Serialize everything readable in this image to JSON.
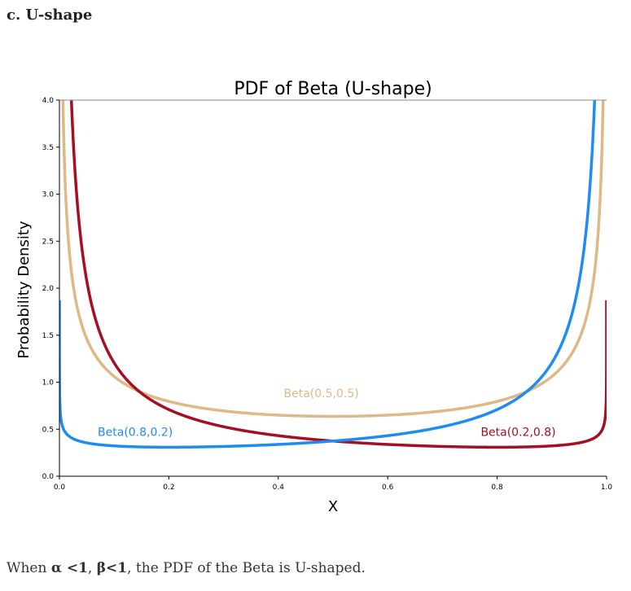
{
  "section_heading": "c. U-shape",
  "caption": {
    "prefix": "When ",
    "alpha": "α <1",
    "sep": ", ",
    "beta": "β<1",
    "suffix": ", the PDF of the Beta is U-shaped."
  },
  "chart_data": {
    "type": "line",
    "title": "PDF of Beta (U-shape)",
    "xlabel": "X",
    "ylabel": "Probability Density",
    "xlim": [
      0,
      1
    ],
    "ylim": [
      0,
      4
    ],
    "xticks": [
      "0.0",
      "0.2",
      "0.4",
      "0.6",
      "0.8",
      "1.0"
    ],
    "yticks": [
      "0.0",
      "0.5",
      "1.0",
      "1.5",
      "2.0",
      "2.5",
      "3.0",
      "3.5",
      "4.0"
    ],
    "grid": false,
    "series": [
      {
        "name": "Beta(0.5,0.5)",
        "alpha": 0.5,
        "beta": 0.5,
        "color": "#deb887"
      },
      {
        "name": "Beta(0.2,0.8)",
        "alpha": 0.2,
        "beta": 0.8,
        "color": "#a50f24"
      },
      {
        "name": "Beta(0.8,0.2)",
        "alpha": 0.8,
        "beta": 0.2,
        "color": "#1e8cf0"
      }
    ],
    "annotations": [
      {
        "text": "Beta(0.5,0.5)",
        "x": 0.41,
        "y": 0.84,
        "color": "#deb887"
      },
      {
        "text": "Beta(0.8,0.2)",
        "x": 0.07,
        "y": 0.43,
        "color": "#1e8cf0"
      },
      {
        "text": "Beta(0.2,0.8)",
        "x": 0.77,
        "y": 0.43,
        "color": "#a50f24"
      }
    ]
  }
}
